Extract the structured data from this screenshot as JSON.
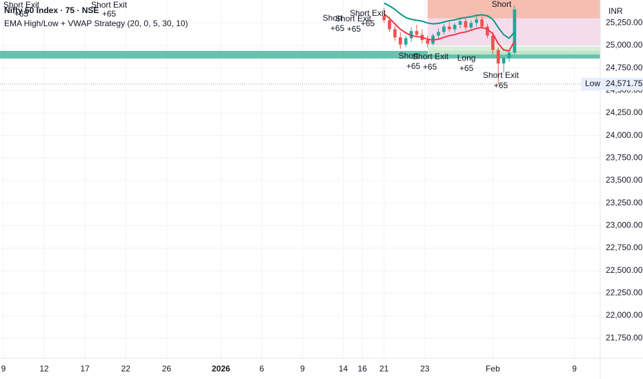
{
  "chart_data": {
    "type": "candlestick",
    "title": "Nifty 50 Index · 75 · NSE",
    "subtitle": "EMA High/Low + VWAP Strategy (20, 0, 5, 30, 10)",
    "currency": "INR",
    "xlim": [
      -0.25,
      43.9
    ],
    "xticks": [
      {
        "value": 0,
        "label": "9"
      },
      {
        "value": 3,
        "label": "12"
      },
      {
        "value": 6,
        "label": "17"
      },
      {
        "value": 9,
        "label": "22"
      },
      {
        "value": 12,
        "label": "26"
      },
      {
        "value": 16,
        "label": "2026"
      },
      {
        "value": 19,
        "label": "6"
      },
      {
        "value": 22,
        "label": "9"
      },
      {
        "value": 25,
        "label": "14"
      },
      {
        "value": 26.4,
        "label": "16"
      },
      {
        "value": 28,
        "label": "21"
      },
      {
        "value": 31,
        "label": "23"
      },
      {
        "value": 36,
        "label": "Feb"
      },
      {
        "value": 42,
        "label": "9"
      }
    ],
    "ylim": [
      21526,
      25505
    ],
    "yticks": [
      {
        "value": 21750,
        "label": "21,750.00"
      },
      {
        "value": 22000,
        "label": "22,000.00"
      },
      {
        "value": 22250,
        "label": "22,250.00"
      },
      {
        "value": 22500,
        "label": "22,500.00"
      },
      {
        "value": 22750,
        "label": "22,750.00"
      },
      {
        "value": 23000,
        "label": "23,000.00"
      },
      {
        "value": 23250,
        "label": "23,250.00"
      },
      {
        "value": 23500,
        "label": "23,500.00"
      },
      {
        "value": 23750,
        "label": "23,750.00"
      },
      {
        "value": 24000,
        "label": "24,000.00"
      },
      {
        "value": 24250,
        "label": "24,250.00"
      },
      {
        "value": 24500,
        "label": "24,500.00"
      },
      {
        "value": 24750,
        "label": "24,750.00"
      },
      {
        "value": 25000,
        "label": "25,000.00"
      },
      {
        "value": 25250,
        "label": "25,250.00"
      }
    ],
    "grid": true,
    "up_color": "#26a69a",
    "down_color": "#ef5350",
    "candles": {
      "x": [
        28,
        28.4,
        28.8,
        29.2,
        29.6,
        30,
        30.4,
        30.8,
        31.2,
        31.6,
        32,
        32.4,
        32.8,
        33.2,
        33.6,
        34,
        34.4,
        34.8,
        35.2,
        35.6,
        36,
        36.4,
        36.8,
        37.2,
        37.6
      ],
      "open": [
        25330,
        25280,
        25180,
        25090,
        25010,
        25080,
        25160,
        25120,
        25060,
        25020,
        25110,
        25150,
        25210,
        25180,
        25230,
        25270,
        25200,
        25250,
        25290,
        25210,
        25110,
        24950,
        24800,
        24860,
        24920
      ],
      "high": [
        25420,
        25320,
        25220,
        25150,
        25110,
        25200,
        25230,
        25180,
        25110,
        25130,
        25190,
        25240,
        25260,
        25250,
        25310,
        25300,
        25280,
        25330,
        25320,
        25240,
        25150,
        24980,
        24880,
        24950,
        25450
      ],
      "low": [
        25250,
        25150,
        25050,
        24960,
        24980,
        25040,
        25090,
        25020,
        24980,
        25000,
        25070,
        25120,
        25150,
        25140,
        25190,
        25170,
        25160,
        25210,
        25180,
        25080,
        24900,
        24571.75,
        24700,
        24820,
        24900
      ],
      "close": [
        25280,
        25180,
        25090,
        25010,
        25080,
        25160,
        25120,
        25060,
        25020,
        25110,
        25150,
        25210,
        25180,
        25230,
        25270,
        25200,
        25250,
        25290,
        25210,
        25110,
        24950,
        24800,
        24860,
        24920,
        25400
      ]
    },
    "overlays": [
      {
        "color": "#f23645",
        "values": [
          25350,
          25300,
          25240,
          25180,
          25140,
          25110,
          25100,
          25090,
          25070,
          25060,
          25070,
          25090,
          25110,
          25120,
          25140,
          25150,
          25170,
          25190,
          25200,
          25180,
          25130,
          25020,
          24950,
          24940,
          25050
        ]
      },
      {
        "color": "#089981",
        "values": [
          25470,
          25440,
          25400,
          25350,
          25310,
          25290,
          25280,
          25270,
          25250,
          25240,
          25245,
          25260,
          25275,
          25285,
          25300,
          25310,
          25320,
          25335,
          25340,
          25330,
          25290,
          25200,
          25120,
          25080,
          25150
        ]
      }
    ],
    "bands": [
      {
        "xlim": [
          -0.25,
          43.9
        ],
        "ylim": [
          24855,
          24940
        ],
        "color": "#4db6a0"
      },
      {
        "xlim": [
          31.2,
          43.9
        ],
        "ylim": [
          25300,
          25505
        ],
        "color": "#f5b3a2"
      },
      {
        "xlim": [
          31.2,
          43.9
        ],
        "ylim": [
          25000,
          25300
        ],
        "color": "#f3d6ea"
      },
      {
        "xlim": [
          31.2,
          43.9
        ],
        "ylim": [
          24900,
          24990
        ],
        "color": "#cfeccf"
      }
    ],
    "low_line": {
      "name": "Low",
      "value": 24571.75,
      "value_label": "24,571.75"
    },
    "annotations": [
      {
        "text": "Short Exit",
        "x": 1.32,
        "y": 25444
      },
      {
        "text": "+65",
        "x": 1.32,
        "y": 25344
      },
      {
        "text": "Short Exit",
        "x": 7.77,
        "y": 25444
      },
      {
        "text": "+65",
        "x": 7.77,
        "y": 25344
      },
      {
        "text": "Short",
        "x": 24.21,
        "y": 25298
      },
      {
        "text": "+65",
        "x": 24.57,
        "y": 25184
      },
      {
        "text": "Short Exit",
        "x": 25.73,
        "y": 25291
      },
      {
        "text": "+65",
        "x": 25.78,
        "y": 25176
      },
      {
        "text": "Short Exit",
        "x": 26.8,
        "y": 25352
      },
      {
        "text": "+65",
        "x": 26.8,
        "y": 25237
      },
      {
        "text": "Short",
        "x": 29.79,
        "y": 24878
      },
      {
        "text": "+65",
        "x": 30.15,
        "y": 24763
      },
      {
        "text": "Short Exit",
        "x": 31.42,
        "y": 24870
      },
      {
        "text": "+65",
        "x": 31.37,
        "y": 24755
      },
      {
        "text": "Long",
        "x": 34.06,
        "y": 24855
      },
      {
        "text": "+65",
        "x": 34.06,
        "y": 24740
      },
      {
        "text": "Short Exit",
        "x": 36.59,
        "y": 24663
      },
      {
        "text": "+65",
        "x": 36.59,
        "y": 24548
      },
      {
        "text": "Short",
        "x": 36.64,
        "y": 25451
      }
    ]
  }
}
